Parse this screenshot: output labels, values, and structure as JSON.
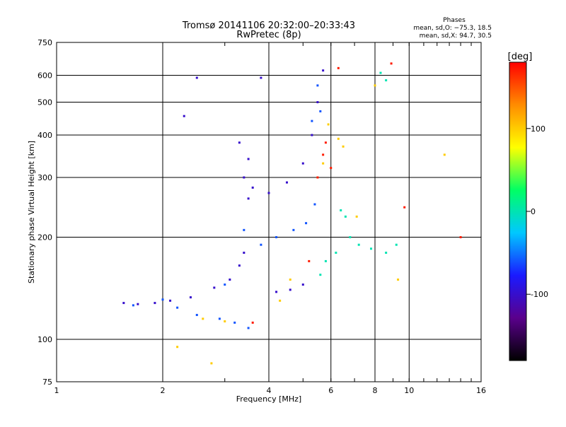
{
  "chart_data": {
    "type": "scatter",
    "title": "Tromsø 20141106 20:32:00–20:33:43",
    "subtitle": "RwPretec (8p)",
    "xlabel": "Frequency [MHz]",
    "ylabel": "Stationary phase Virtual Height [km]",
    "x_scale": "log",
    "y_scale": "log",
    "xlim": [
      1,
      16
    ],
    "ylim": [
      75,
      750
    ],
    "x_ticks": [
      1,
      2,
      4,
      6,
      8,
      10,
      16
    ],
    "y_ticks": [
      75,
      100,
      200,
      300,
      400,
      500,
      600,
      750
    ],
    "grid": true,
    "stats": {
      "heading": "Phases",
      "line1": "mean, sd,O: −75.3, 18.5",
      "line2": "mean, sd,X:  94.7, 30.5"
    },
    "colorbar": {
      "label": "[deg]",
      "ticks": [
        100,
        0,
        -100
      ],
      "range": [
        -180,
        180
      ],
      "colormap": [
        "#000000",
        "#5a008c",
        "#1a1aff",
        "#00c8ff",
        "#00ff64",
        "#ffff00",
        "#ff8c00",
        "#ff0000"
      ]
    },
    "series": [
      {
        "phase": -100,
        "points": [
          [
            1.55,
            128
          ],
          [
            1.7,
            127
          ],
          [
            1.9,
            128
          ],
          [
            2.1,
            130
          ],
          [
            2.4,
            133
          ],
          [
            2.8,
            142
          ],
          [
            3.1,
            150
          ],
          [
            3.3,
            165
          ],
          [
            3.4,
            180
          ],
          [
            3.5,
            260
          ],
          [
            3.4,
            300
          ],
          [
            3.5,
            340
          ],
          [
            3.3,
            380
          ],
          [
            3.6,
            280
          ],
          [
            4.0,
            270
          ],
          [
            4.5,
            290
          ],
          [
            5.0,
            330
          ],
          [
            5.3,
            400
          ],
          [
            5.5,
            500
          ],
          [
            5.7,
            620
          ],
          [
            4.2,
            138
          ],
          [
            4.6,
            140
          ],
          [
            5.0,
            145
          ],
          [
            2.3,
            455
          ],
          [
            2.5,
            590
          ],
          [
            3.8,
            590
          ]
        ]
      },
      {
        "phase": -60,
        "points": [
          [
            1.65,
            126
          ],
          [
            2.0,
            131
          ],
          [
            2.2,
            124
          ],
          [
            2.5,
            118
          ],
          [
            2.9,
            115
          ],
          [
            3.2,
            112
          ],
          [
            3.5,
            108
          ],
          [
            3.0,
            145
          ],
          [
            3.4,
            210
          ],
          [
            3.8,
            190
          ],
          [
            4.2,
            200
          ],
          [
            4.7,
            210
          ],
          [
            5.1,
            220
          ],
          [
            5.4,
            250
          ],
          [
            5.3,
            440
          ],
          [
            5.5,
            560
          ],
          [
            5.6,
            470
          ]
        ]
      },
      {
        "phase": 0,
        "points": [
          [
            5.6,
            155
          ],
          [
            5.8,
            170
          ],
          [
            6.2,
            180
          ],
          [
            6.4,
            240
          ],
          [
            6.6,
            230
          ],
          [
            6.8,
            200
          ],
          [
            7.2,
            190
          ],
          [
            7.8,
            185
          ],
          [
            8.6,
            180
          ],
          [
            9.2,
            190
          ],
          [
            8.3,
            610
          ],
          [
            8.6,
            580
          ]
        ]
      },
      {
        "phase": 100,
        "points": [
          [
            2.6,
            115
          ],
          [
            3.0,
            113
          ],
          [
            4.3,
            130
          ],
          [
            4.6,
            150
          ],
          [
            5.5,
            300
          ],
          [
            5.7,
            330
          ],
          [
            5.9,
            430
          ],
          [
            6.3,
            390
          ],
          [
            6.5,
            370
          ],
          [
            7.1,
            230
          ],
          [
            8.0,
            560
          ],
          [
            9.3,
            150
          ],
          [
            12.6,
            350
          ],
          [
            2.2,
            95
          ],
          [
            2.75,
            85
          ]
        ]
      },
      {
        "phase": 170,
        "points": [
          [
            3.6,
            112
          ],
          [
            5.5,
            300
          ],
          [
            5.7,
            350
          ],
          [
            5.8,
            380
          ],
          [
            6.0,
            320
          ],
          [
            5.2,
            170
          ],
          [
            6.3,
            630
          ],
          [
            8.9,
            650
          ],
          [
            9.7,
            245
          ],
          [
            14.0,
            200
          ]
        ]
      }
    ]
  }
}
